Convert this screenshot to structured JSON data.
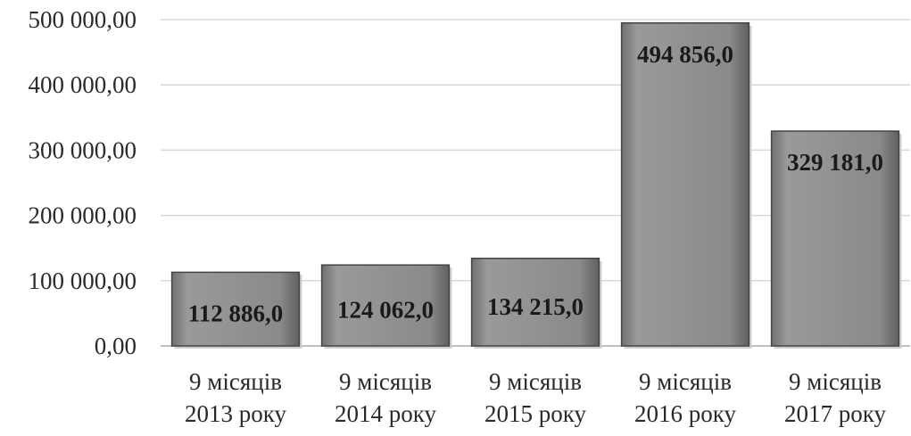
{
  "chart_data": {
    "type": "bar",
    "title": "",
    "xlabel": "",
    "ylabel": "",
    "categories": [
      [
        "9 місяців",
        "2013 року"
      ],
      [
        "9 місяців",
        "2014 року"
      ],
      [
        "9 місяців",
        "2015 року"
      ],
      [
        "9 місяців",
        "2016 року"
      ],
      [
        "9 місяців",
        "2017 року"
      ]
    ],
    "values": [
      112886.0,
      124062.0,
      134215.0,
      494856.0,
      329181.0
    ],
    "data_labels": [
      "112 886,0",
      "124 062,0",
      "134 215,0",
      "494 856,0",
      "329 181,0"
    ],
    "yticks": [
      0,
      100000,
      200000,
      300000,
      400000,
      500000
    ],
    "ytick_labels": [
      "0,00",
      "100 000,00",
      "200 000,00",
      "300 000,00",
      "400 000,00",
      "500 000,00"
    ],
    "ylim": [
      0,
      500000
    ],
    "grid": true,
    "legend": "none",
    "colors": {
      "bar_fill": "#8c8c8c",
      "bar_stroke": "#444444",
      "grid": "#d9d9d9",
      "axis": "#bfbfbf",
      "text": "#2a2a2a"
    }
  }
}
